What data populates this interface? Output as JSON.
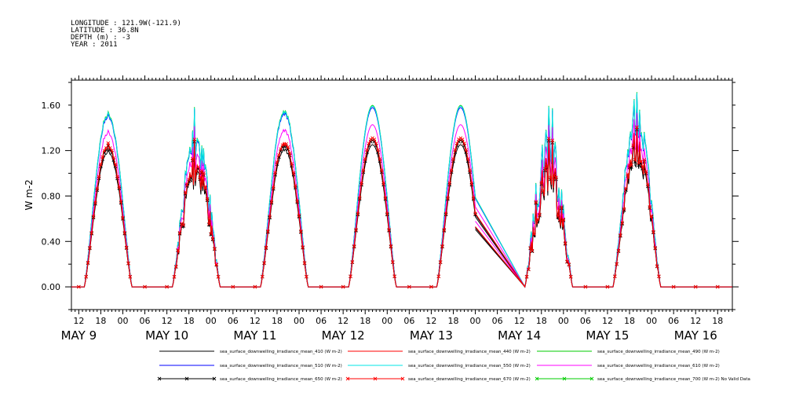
{
  "header": {
    "lines": [
      "LONGITUDE : 121.9W(-121.9)",
      "LATITUDE : 36.8N",
      "DEPTH (m) : -3",
      "YEAR : 2011"
    ]
  },
  "chart_data": {
    "type": "line",
    "title": "",
    "xlabel": "",
    "ylabel": "W m-2",
    "ylim": [
      -0.2,
      1.82
    ],
    "yticks": [
      "0.00",
      "0.40",
      "0.80",
      "1.20",
      "1.60"
    ],
    "ytick_values": [
      0.0,
      0.4,
      0.8,
      1.2,
      1.6
    ],
    "xlim_hours": [
      10,
      190
    ],
    "xticks": {
      "hours": [
        12,
        18,
        24,
        30,
        36,
        42,
        48,
        54,
        60,
        66,
        72,
        78,
        84,
        90,
        96,
        102,
        108,
        114,
        120,
        126,
        132,
        138,
        144,
        150,
        156,
        162,
        168,
        174,
        180,
        186
      ],
      "labels": [
        "12",
        "18",
        "00",
        "06",
        "12",
        "18",
        "00",
        "06",
        "12",
        "18",
        "00",
        "06",
        "12",
        "18",
        "00",
        "06",
        "12",
        "18",
        "00",
        "06",
        "12",
        "18",
        "00",
        "06",
        "12",
        "18",
        "00",
        "06",
        "12",
        "18"
      ]
    },
    "x_date_labels": [
      {
        "label": "MAY  9",
        "hour": 12
      },
      {
        "label": "MAY 10",
        "hour": 36
      },
      {
        "label": "MAY 11",
        "hour": 60
      },
      {
        "label": "MAY 12",
        "hour": 84
      },
      {
        "label": "MAY 13",
        "hour": 108
      },
      {
        "label": "MAY 14",
        "hour": 132
      },
      {
        "label": "MAY 15",
        "hour": 156
      },
      {
        "label": "MAY 16",
        "hour": 180
      }
    ],
    "x_unit": "hours since 2011-05-09 00:00",
    "days": [
      {
        "start": 13.3,
        "peak": 20.0,
        "end": 26.3,
        "amp": 1.27,
        "noise": 0.04
      },
      {
        "start": 37.3,
        "peak": 44.0,
        "end": 50.3,
        "amp": 1.26,
        "noise": 0.38,
        "spikes": [
          [
            43.5,
            1.57
          ],
          [
            44.2,
            1.3
          ]
        ]
      },
      {
        "start": 61.3,
        "peak": 68.0,
        "end": 74.3,
        "amp": 1.28,
        "noise": 0.03
      },
      {
        "start": 85.3,
        "peak": 92.0,
        "end": 98.3,
        "amp": 1.31,
        "noise": 0.0
      },
      {
        "start": 109.3,
        "peak": 116.0,
        "end": 122.3,
        "amp": 1.31,
        "noise": 0.0
      },
      {
        "start": 133.3,
        "peak": 140.0,
        "end": 146.3,
        "amp": 1.27,
        "noise": 0.48,
        "spikes": [
          [
            140.0,
            1.58
          ],
          [
            141.0,
            1.56
          ]
        ]
      },
      {
        "start": 157.3,
        "peak": 164.0,
        "end": 170.3,
        "amp": 1.31,
        "noise": 0.22,
        "spikes": [
          [
            164.1,
            1.7
          ],
          [
            163.2,
            1.64
          ]
        ]
      }
    ],
    "gap": {
      "from_hour": 120.0,
      "to_hour": 133.5
    },
    "series": [
      {
        "name": "sea_surface_downwelling_irradiance_mean_410 (W m-2)",
        "color": "#000000",
        "scale": 0.955,
        "marker": false
      },
      {
        "name": "sea_surface_downwelling_irradiance_mean_440 (W m-2)",
        "color": "#ff0000",
        "scale": 0.985,
        "marker": false
      },
      {
        "name": "sea_surface_downwelling_irradiance_mean_490 (W m-2)",
        "color": "#00cc00",
        "scale": 1.22,
        "marker": false
      },
      {
        "name": "sea_surface_downwelling_irradiance_mean_510 (W m-2)",
        "color": "#0000ff",
        "scale": 1.205,
        "marker": false
      },
      {
        "name": "sea_surface_downwelling_irradiance_mean_550 (W m-2)",
        "color": "#00e5e5",
        "scale": 1.215,
        "marker": false
      },
      {
        "name": "sea_surface_downwelling_irradiance_mean_610 (W m-2)",
        "color": "#ff00ff",
        "scale": 1.09,
        "marker": false
      },
      {
        "name": "sea_surface_downwelling_irradiance_mean_650 (W m-2)",
        "color": "#000000",
        "scale": 0.985,
        "marker": true
      },
      {
        "name": "sea_surface_downwelling_irradiance_mean_670 (W m-2)",
        "color": "#ff0000",
        "scale": 1.0,
        "marker": true
      },
      {
        "name": "sea_surface_downwelling_irradiance_mean_700 (W m-2) No Valid Data",
        "color": "#00cc00",
        "scale": 0.0,
        "marker": true,
        "no_data": true
      }
    ]
  }
}
